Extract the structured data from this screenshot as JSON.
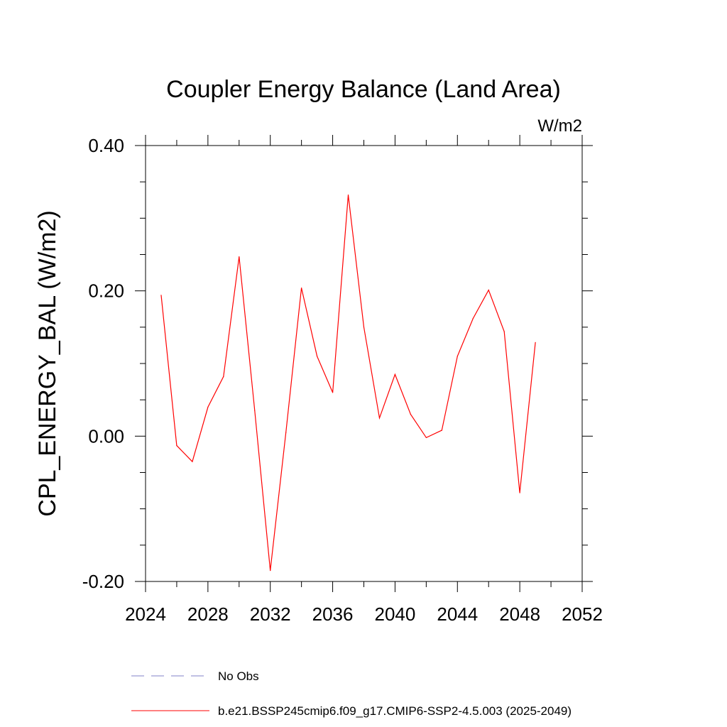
{
  "chart_data": {
    "type": "line",
    "title": "Coupler Energy Balance (Land Area)",
    "units": "W/m2",
    "ylabel": "CPL_ENERGY_BAL  (W/m2)",
    "xlabel": "",
    "xlim": [
      2024,
      2052
    ],
    "ylim": [
      -0.2,
      0.4
    ],
    "x_ticks": [
      2024,
      2028,
      2032,
      2036,
      2040,
      2044,
      2048,
      2052
    ],
    "x_tick_labels": [
      "2024",
      "2028",
      "2032",
      "2036",
      "2040",
      "2044",
      "2048",
      "2052"
    ],
    "y_ticks": [
      -0.2,
      0.0,
      0.2,
      0.4
    ],
    "y_tick_labels": [
      "-0.20",
      "0.00",
      "0.20",
      "0.40"
    ],
    "x_minor_step": 2,
    "y_minor_step": 0.05,
    "series": [
      {
        "name": "b.e21.BSSP245cmip6.f09_g17.CMIP6-SSP2-4.5.003 (2025-2049)",
        "color": "#ff0000",
        "style": "solid",
        "x": [
          2025,
          2026,
          2027,
          2028,
          2029,
          2030,
          2031,
          2032,
          2033,
          2034,
          2035,
          2036,
          2037,
          2038,
          2039,
          2040,
          2041,
          2042,
          2043,
          2044,
          2045,
          2046,
          2047,
          2048,
          2049
        ],
        "y": [
          0.194,
          -0.013,
          -0.035,
          0.04,
          0.082,
          0.247,
          0.035,
          -0.185,
          0.005,
          0.204,
          0.11,
          0.06,
          0.332,
          0.15,
          0.025,
          0.085,
          0.03,
          -0.002,
          0.008,
          0.11,
          0.162,
          0.201,
          0.144,
          -0.078,
          0.129
        ]
      }
    ],
    "legend": [
      {
        "label": "No Obs",
        "color": "#8080c8",
        "style": "dashed"
      },
      {
        "label": "b.e21.BSSP245cmip6.f09_g17.CMIP6-SSP2-4.5.003 (2025-2049)",
        "color": "#ff0000",
        "style": "solid"
      }
    ],
    "legend_position": "bottom-left"
  }
}
